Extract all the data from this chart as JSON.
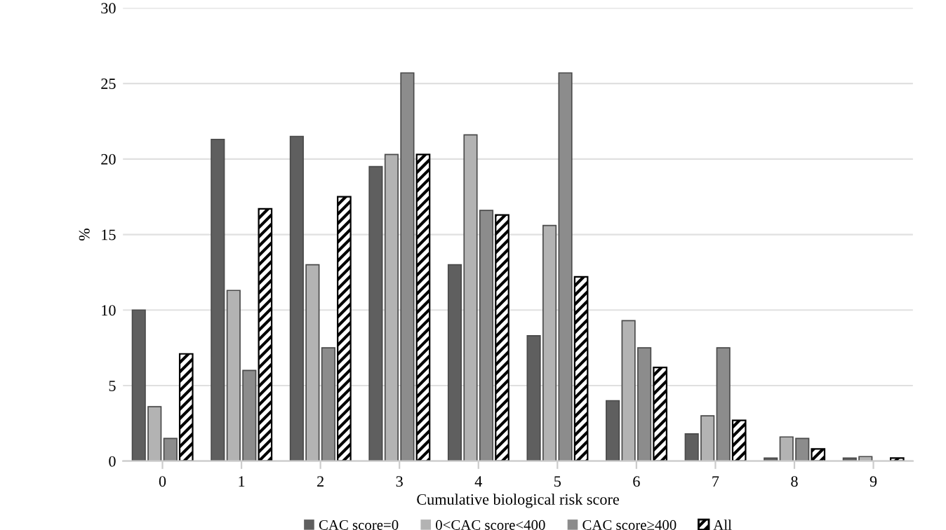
{
  "chart_data": {
    "type": "bar",
    "xlabel": "Cumulative biological risk score",
    "ylabel": "%",
    "categories": [
      "0",
      "1",
      "2",
      "3",
      "4",
      "5",
      "6",
      "7",
      "8",
      "9"
    ],
    "series": [
      {
        "name": "CAC score=0",
        "color": "#5f5f5f",
        "values": [
          10,
          21.3,
          21.5,
          19.5,
          13.0,
          8.3,
          4.0,
          1.8,
          0.2,
          0.2
        ]
      },
      {
        "name": "0<CAC score<400",
        "color": "#b3b3b3",
        "values": [
          3.6,
          11.3,
          13.0,
          20.3,
          21.6,
          15.6,
          9.3,
          3.0,
          1.6,
          0.3
        ]
      },
      {
        "name": "CAC score≥400",
        "color": "#8c8c8c",
        "values": [
          1.5,
          6.0,
          7.5,
          25.7,
          16.6,
          25.7,
          7.5,
          7.5,
          1.5,
          null
        ]
      },
      {
        "name": "All",
        "color": "#000000",
        "values": [
          7.1,
          16.7,
          17.5,
          20.3,
          16.3,
          12.2,
          6.2,
          2.7,
          0.8,
          0.2
        ]
      }
    ],
    "ylim": [
      0,
      30
    ],
    "yticks": [
      0,
      5,
      10,
      15,
      20,
      25,
      30
    ],
    "grid": "y",
    "legend": "bottom"
  }
}
